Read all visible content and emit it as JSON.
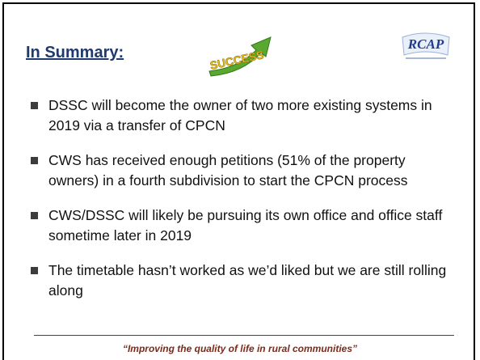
{
  "header": {
    "title": "In Summary:",
    "icon_text": "SUCCESS",
    "logo_text": "RCAP"
  },
  "bullets": [
    "DSSC will become the owner of two more existing systems in 2019 via a transfer of CPCN",
    "CWS has received enough petitions (51% of the property owners) in a fourth subdivision to start the CPCN process",
    "CWS/DSSC will likely be pursuing its own office and office staff sometime later in 2019",
    "The timetable hasn’t worked as we’d liked but we are still rolling along"
  ],
  "footer": "“Improving the quality of life in rural communities”"
}
